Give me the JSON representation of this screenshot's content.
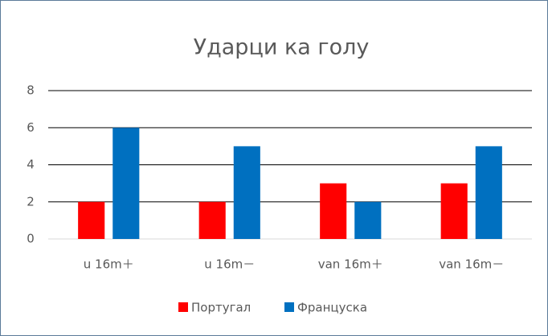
{
  "chart_data": {
    "type": "bar",
    "title": "Ударци ка голу",
    "categories": [
      "u 16m＋",
      "u 16m－",
      "van 16m＋",
      "van 16m－"
    ],
    "series": [
      {
        "name": "Португал",
        "color": "#ff0000",
        "values": [
          2,
          2,
          3,
          3
        ]
      },
      {
        "name": "Француска",
        "color": "#0070c0",
        "values": [
          6,
          5,
          2,
          5
        ]
      }
    ],
    "ylim": [
      0,
      8
    ],
    "yticks": [
      0,
      2,
      4,
      6,
      8
    ],
    "grid": true,
    "legend": "bottom"
  }
}
